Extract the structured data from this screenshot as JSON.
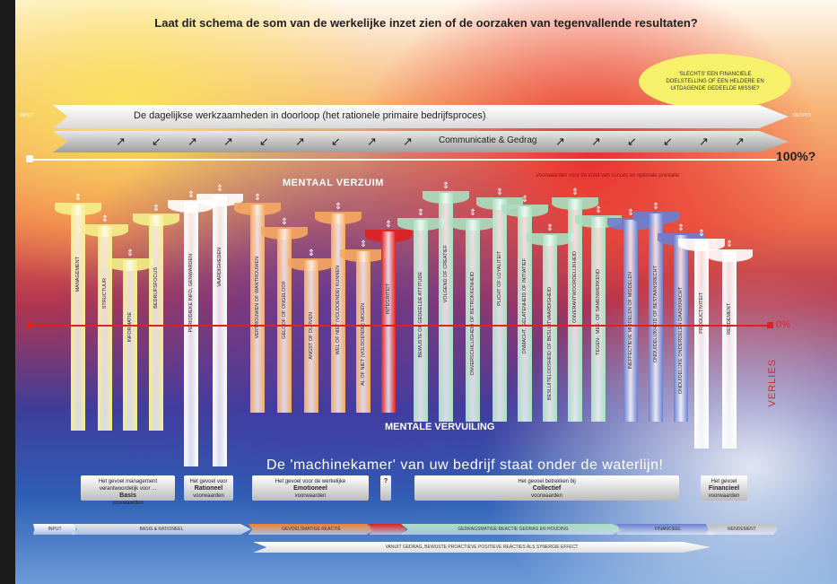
{
  "title": "Laat dit schema de som van de werkelijke inzet zien of de oorzaken van tegenvallende resultaten?",
  "bubble": "'SLECHTS' EEN FINANCIELE DOELSTELLING OF EEN HELDERE EN UITDAGENDE GEDEELDE MISSIE?",
  "arrow1": "De dagelijkse werkzaamheden in doorloop (het rationele primaire bedrijfsproces)",
  "arrow2": "Communicatie & Gedrag",
  "arrow_left_small": "INPUT",
  "arrow_right_small": "OUTPUT",
  "p100": "100%?",
  "mentaal_verzuim": "MENTAAL VERZUIM",
  "top_note": "Voorwaarden voor de inzet van succes en optimale prestatie",
  "p0": "0%",
  "verlies": "VERLIES",
  "mentale_vervuiling": "MENTALE VERVUILING",
  "machinekamer": "De 'machinekamer' van uw bedrijf staat onder de waterlijn!",
  "columns": [
    {
      "label": "MANAGEMENT",
      "color": "#f3ef8a"
    },
    {
      "label": "STRUCTUUR",
      "color": "#f3ef8a"
    },
    {
      "label": "INFORMATIE",
      "color": "#f3ef8a"
    },
    {
      "label": "BEDRIJFSFOCUS",
      "color": "#f3ef8a"
    },
    {
      "label": "PERIODIEKE INFO, GENWARDEN",
      "color": "#ffffff"
    },
    {
      "label": "VAARDIGHEDEN",
      "color": "#ffffff"
    },
    {
      "label": "VERTROUWEN OF WANTROUWEN",
      "color": "#f6a860"
    },
    {
      "label": "GELOOF OF ONGELOOF",
      "color": "#f6a860"
    },
    {
      "label": "ANGST OF DURVEN",
      "color": "#f6a860"
    },
    {
      "label": "WEL OF NIET (VOLDOENDE) KUNNEN",
      "color": "#f6a860"
    },
    {
      "label": "AL OF NIET (VOLDOENDE) MOGEN",
      "color": "#f6a860"
    },
    {
      "label": "INTEGRITEIT",
      "color": "#e02020"
    },
    {
      "label": "BEWUSTE OF GEDEELDE ATTITUDE",
      "color": "#a8e0c0"
    },
    {
      "label": "VOLGEND OF CREATIEF",
      "color": "#a8e0c0"
    },
    {
      "label": "ONVERSCHILLIGHEID OF BETROKKENHEID",
      "color": "#a8e0c0"
    },
    {
      "label": "PLICHT OF LOYALITEIT",
      "color": "#a8e0c0"
    },
    {
      "label": "ONMACHT, GELATENHEID OF INITIATIEF",
      "color": "#a8e0c0"
    },
    {
      "label": "BESLUITELOOSHEID OF BESLUITVAARDIGHEID",
      "color": "#a8e0c0"
    },
    {
      "label": "ONVERANTWOORDELIJKHEID",
      "color": "#a8e0c0"
    },
    {
      "label": "TEGEN-, MEE- OF SAMENWERKEND",
      "color": "#a8e0c0"
    },
    {
      "label": "INEFFECTIEVE MIDDELEN OF MIDDELEN",
      "color": "#6a7fd0"
    },
    {
      "label": "ONDUIDELIJKHEID OF BESTAANSRECHT",
      "color": "#6a7fd0"
    },
    {
      "label": "ONDUIDELIJKE ONDERDELEN DAADKRACHT",
      "color": "#6a7fd0"
    },
    {
      "label": "PRODUCTIVITEIT",
      "color": "#ffffff"
    },
    {
      "label": "RENDEMENT",
      "color": "#ffffff"
    }
  ],
  "boxes": [
    {
      "small": "Het gevoel management verantwoordelijk voor ...",
      "label": "Basis",
      "sub": "voorwaarden"
    },
    {
      "small": "Het gevoel voor",
      "label": "Rationeel",
      "sub": "voorwaarden"
    },
    {
      "small": "Het gevoel voor de werkelijke",
      "label": "Emotioneel",
      "sub": "voorwaarden"
    },
    {
      "small": "",
      "label": "?",
      "sub": ""
    },
    {
      "small": "Het gevoel betrekken bij",
      "label": "Collectief",
      "sub": "voorwaarden"
    },
    {
      "small": "Het gevoel",
      "label": "Financieel",
      "sub": "voorwaarden"
    }
  ],
  "bars": [
    {
      "label": "INPUT",
      "color": "#ffffff"
    },
    {
      "label": "BASIS & RATIONEEL",
      "color": "#e8e8e8"
    },
    {
      "label": "GEVOELSMATIGE REACTIE",
      "color": "#f08030"
    },
    {
      "label": "",
      "color": "#e02020"
    },
    {
      "label": "GEDRAGSMATIGE REACTIE GEDRAG EN HOUDING",
      "color": "#a8e0c0"
    },
    {
      "label": "FINANCIEEL",
      "color": "#6a7fd0"
    },
    {
      "label": "RENDEMENT",
      "color": "#c0c0c0"
    }
  ],
  "bottom_bar": "VANUIT GEDRAG, BEWUSTE PROACTIEVE POSITIEVE REACTIES ALS SYNERGIE EFFECT"
}
